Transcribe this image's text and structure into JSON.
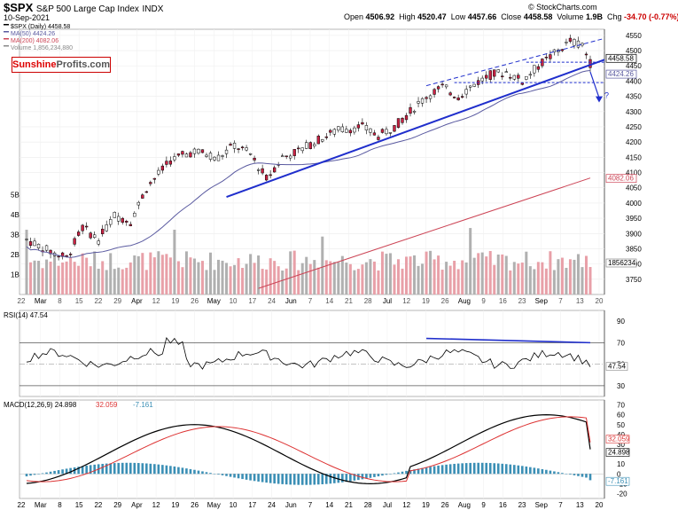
{
  "header": {
    "symbol": "$SPX",
    "description": "S&P 500 Large Cap Index",
    "exchange": "INDX",
    "date": "10-Sep-2021",
    "credit": "© StockCharts.com",
    "ohlc": {
      "open_label": "Open",
      "open": "4506.92",
      "high_label": "High",
      "high": "4520.47",
      "low_label": "Low",
      "low": "4457.66",
      "close_label": "Close",
      "close": "4458.58",
      "volume_label": "Volume",
      "volume": "1.9B",
      "chg_label": "Chg",
      "chg": "-34.70 (-0.77%)"
    }
  },
  "logo": {
    "part1": "Sunshine",
    "part2": "Profits.com"
  },
  "colors": {
    "up": "#ffffff",
    "down": "#cc2244",
    "ma50": "#5a5aa0",
    "ma200": "#cc4455",
    "trend": "#1f2ecc",
    "volume_up": "#b0b0b0",
    "volume_down": "#e8a0a8",
    "macd": "#000000",
    "signal": "#dd3333",
    "hist": "#3b8fb5"
  },
  "chart_data": [
    {
      "type": "candlestick",
      "legend": [
        {
          "label": "$SPX (Daily) 4458.58",
          "color": "#000000"
        },
        {
          "label": "MA(50) 4424.26",
          "color": "#5a5aa0"
        },
        {
          "label": "MA(200) 4082.06",
          "color": "#cc4455"
        },
        {
          "label": "Volume 1,856,234,880",
          "color": "#888888"
        }
      ],
      "y_ticks": [
        3750,
        3800,
        3850,
        3900,
        3950,
        4000,
        4050,
        4100,
        4150,
        4200,
        4250,
        4300,
        4350,
        4400,
        4450,
        4500,
        4550
      ],
      "ylim": [
        3700,
        4570
      ],
      "price_labels": [
        "4458.58",
        "4424.26",
        "4082.06"
      ],
      "price_label_values": [
        4458.58,
        4424.26,
        4082.06
      ],
      "volume_ticks": [
        "1B",
        "2B",
        "3B",
        "4B",
        "5B"
      ],
      "volume_tick_values": [
        1,
        2,
        3,
        4,
        5
      ],
      "volume_label": "1856234",
      "x_labels": [
        "22",
        "Mar",
        "8",
        "15",
        "22",
        "29",
        "Apr",
        "12",
        "19",
        "26",
        "May",
        "10",
        "17",
        "24",
        "Jun",
        "7",
        "14",
        "21",
        "28",
        "Jul",
        "12",
        "19",
        "26",
        "Aug",
        "9",
        "16",
        "23",
        "Sep",
        "7",
        "13",
        "20"
      ],
      "annotation": "?",
      "ma50_end": 4424.26,
      "ma200_end": 4082.06,
      "last_close": 4458.58
    },
    {
      "type": "line",
      "title": "RSI(14) 47.54",
      "y_ticks": [
        30,
        50,
        70,
        90
      ],
      "ylim": [
        20,
        100
      ],
      "last_value_label": "47.54",
      "last_value": 47.54
    },
    {
      "type": "line",
      "title_parts": [
        "MACD(12,26,9) 24.898",
        "32.059",
        "-7.161"
      ],
      "y_ticks": [
        -20,
        -10,
        0,
        10,
        20,
        30,
        40,
        50,
        60,
        70
      ],
      "ylim": [
        -25,
        75
      ],
      "value_labels": [
        "32.059",
        "24.898",
        "-7.161"
      ],
      "values": [
        32.059,
        24.898,
        -7.161
      ],
      "x_labels": [
        "22",
        "Mar",
        "8",
        "15",
        "22",
        "29",
        "Apr",
        "12",
        "19",
        "26",
        "May",
        "10",
        "17",
        "24",
        "Jun",
        "7",
        "14",
        "21",
        "28",
        "Jul",
        "12",
        "19",
        "26",
        "Aug",
        "9",
        "16",
        "23",
        "Sep",
        "7",
        "13",
        "20"
      ]
    }
  ]
}
